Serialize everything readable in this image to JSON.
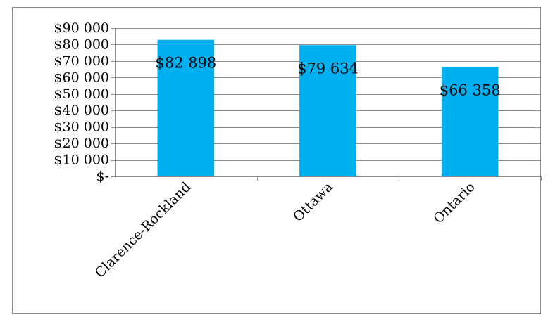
{
  "chart_data": {
    "type": "bar",
    "title": "",
    "xlabel": "",
    "ylabel": "",
    "categories": [
      "Clarence-Rockland",
      "Ottawa",
      "Ontario"
    ],
    "values": [
      82898,
      79634,
      66358
    ],
    "data_labels": [
      "$82 898",
      "$79 634",
      "$66 358"
    ],
    "ylim": [
      0,
      90000
    ],
    "y_ticks": [
      0,
      10000,
      20000,
      30000,
      40000,
      50000,
      60000,
      70000,
      80000,
      90000
    ],
    "y_tick_labels": [
      "$-",
      "$10 000",
      "$20 000",
      "$30 000",
      "$40 000",
      "$50 000",
      "$60 000",
      "$70 000",
      "$80 000",
      "$90 000"
    ],
    "bar_color": "#00b0f0",
    "grid": true,
    "legend": "none"
  }
}
